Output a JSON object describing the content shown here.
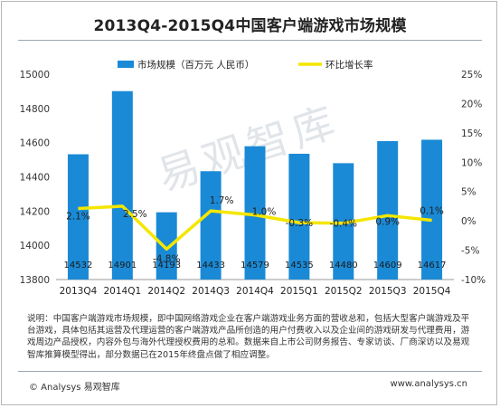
{
  "header": {
    "title": "2013Q4-2015Q4中国客户端游戏市场规模"
  },
  "watermark": "易观智库",
  "chart_data": {
    "type": "bar",
    "title": "2013Q4-2015Q4中国客户端游戏市场规模",
    "categories": [
      "2013Q4",
      "2014Q1",
      "2014Q2",
      "2014Q3",
      "2014Q4",
      "2015Q1",
      "2015Q2",
      "2015Q3",
      "2015Q4"
    ],
    "series": [
      {
        "name": "市场规模（百万元 人民币）",
        "type": "bar",
        "axis": "left",
        "values": [
          14532,
          14901,
          14193,
          14433,
          14579,
          14535,
          14480,
          14609,
          14617
        ],
        "labels": [
          "14532",
          "14901",
          "14193",
          "14433",
          "14579",
          "14535",
          "14480",
          "14609",
          "14617"
        ],
        "color": "#1a8ad6"
      },
      {
        "name": "环比增长率",
        "type": "line",
        "axis": "right",
        "values": [
          2.1,
          2.5,
          -4.8,
          1.7,
          1.0,
          -0.3,
          -0.4,
          0.9,
          0.1
        ],
        "labels": [
          "2.1%",
          "2.5%",
          "-4.8%",
          "1.7%",
          "1.0%",
          "-0.3%",
          "-0.4%",
          "0.9%",
          "0.1%"
        ],
        "color": "#f5e600"
      }
    ],
    "y_left": {
      "min": 13800,
      "max": 15000,
      "ticks": [
        "13800",
        "14000",
        "14200",
        "14400",
        "14600",
        "14800",
        "15000"
      ]
    },
    "y_right": {
      "min": -10,
      "max": 25,
      "ticks": [
        "-10%",
        "-5%",
        "0%",
        "5%",
        "10%",
        "15%",
        "20%",
        "25%"
      ]
    },
    "legend_position": "top"
  },
  "note": "说明：中国客户端游戏市场规模，即中国网络游戏企业在客户端游戏业务方面的营收总和，包括大型客户端游戏及平台游戏，具体包括其运营及代理运营的客户端游戏产品所创造的用户付费收入以及企业间的游戏研发与代理费用，游戏周边产品授权，内容外包与海外代理授权费用的总和。数据来自上市公司财务报告、专家访谈、厂商深访以及易观智库推算模型得出，部分数据已在2015年终盘点做了相应调整。",
  "footer": {
    "copyright": "© Analysys 易观智库",
    "website": "www.analysys.cn"
  }
}
